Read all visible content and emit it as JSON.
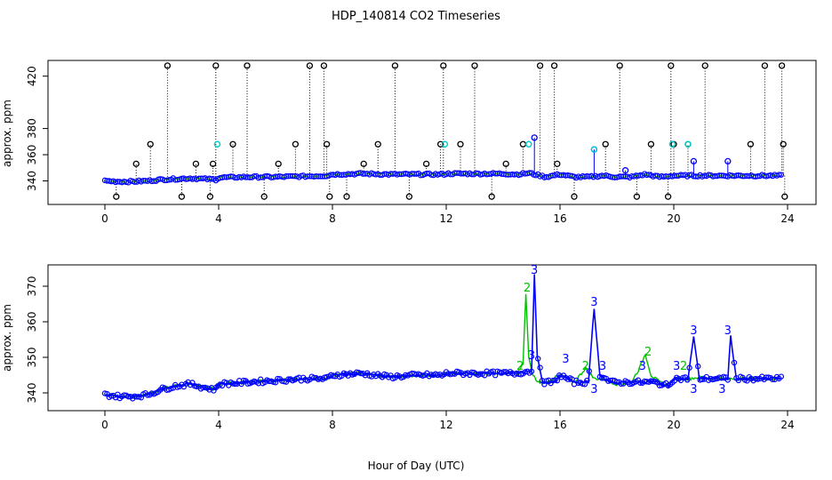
{
  "chart_data": [
    {
      "type": "scatter",
      "title": "HDP_140814  CO2 Timeseries",
      "ylabel": "approx. ppm",
      "xlim": [
        -2,
        25
      ],
      "ylim": [
        322,
        432
      ],
      "x_ticks": [
        0,
        4,
        8,
        12,
        16,
        20,
        24
      ],
      "y_ticks": [
        340,
        360,
        380,
        420
      ],
      "colors": {
        "raw": "#000000",
        "flagged": "#00cdcd",
        "filtered": "#0000ff",
        "smoothed": "#00c000"
      },
      "raw_spikes_x": [
        0.4,
        1.1,
        1.6,
        2.2,
        2.7,
        3.2,
        3.7,
        3.8,
        3.9,
        4.5,
        5.0,
        5.6,
        6.1,
        6.7,
        7.2,
        7.7,
        7.8,
        7.9,
        8.5,
        9.1,
        9.6,
        10.2,
        10.7,
        11.3,
        11.8,
        11.9,
        12.5,
        13.0,
        13.6,
        14.1,
        14.7,
        15.3,
        15.8,
        15.9,
        16.5,
        17.6,
        18.1,
        18.7,
        19.2,
        19.8,
        19.9,
        20.0,
        20.5,
        21.1,
        22.7,
        23.2,
        23.8,
        23.85,
        23.9
      ],
      "raw_spikes_y": [
        328,
        353,
        368,
        428,
        328,
        353,
        328,
        353,
        428,
        368,
        428,
        328,
        353,
        368,
        428,
        428,
        368,
        328,
        328,
        353,
        368,
        428,
        328,
        353,
        368,
        428,
        368,
        428,
        328,
        353,
        368,
        428,
        428,
        353,
        328,
        368,
        428,
        328,
        368,
        328,
        428,
        368,
        368,
        428,
        368,
        428,
        428,
        368,
        328
      ],
      "flagged_x": [
        3.95,
        11.95,
        14.9,
        17.2,
        19.95,
        20.5
      ],
      "flagged_y": [
        368,
        368,
        368,
        364,
        368,
        368
      ],
      "outlier_x": [
        15.1,
        17.2,
        18.3,
        20.7,
        21.9
      ],
      "outlier_y": [
        373,
        364,
        348,
        355,
        355
      ],
      "baseline_x": [
        0,
        0.5,
        1,
        1.5,
        2,
        2.5,
        3,
        3.5,
        3.9,
        4,
        5,
        6,
        7,
        7.8,
        8,
        9,
        10,
        11,
        11.9,
        12,
        13,
        14,
        14.5,
        14.9,
        15.5,
        16,
        16.5,
        17,
        17.5,
        18,
        18.5,
        19,
        19.5,
        20,
        20.5,
        21,
        21.5,
        22,
        22.5,
        23,
        23.5,
        23.8
      ],
      "baseline_y": [
        340,
        339.5,
        339.5,
        340,
        341,
        341.5,
        342,
        341.5,
        341,
        342.5,
        343,
        343,
        343.5,
        344,
        345,
        345.5,
        345,
        345,
        345,
        345.5,
        345.5,
        345.5,
        345,
        346,
        343,
        345,
        343,
        343,
        344,
        343,
        343,
        345,
        343,
        344,
        344,
        344,
        344,
        344,
        344,
        344,
        344,
        344
      ]
    },
    {
      "type": "line",
      "xlabel": "Hour of Day (UTC)",
      "ylabel": "approx. ppm",
      "xlim": [
        -2,
        25
      ],
      "ylim": [
        335,
        376
      ],
      "x_ticks": [
        0,
        4,
        8,
        12,
        16,
        20,
        24
      ],
      "y_ticks": [
        340,
        350,
        360,
        370
      ],
      "series": [
        {
          "name": "2",
          "color": "#00c000",
          "x": [
            0,
            0.5,
            1,
            1.5,
            2,
            2.5,
            3,
            3.5,
            3.9,
            4,
            5,
            6,
            7,
            7.8,
            8,
            9,
            10,
            11,
            11.9,
            12,
            13,
            14,
            14.5,
            14.7,
            14.8,
            14.9,
            15.0,
            15.2,
            15.5,
            16,
            16.5,
            16.9,
            17.2,
            17.5,
            18,
            18.5,
            18.8,
            19.0,
            19.2,
            19.5,
            19.8,
            20,
            20.5,
            21,
            21.5,
            22,
            22.5,
            23,
            23.5,
            23.8
          ],
          "y": [
            339.5,
            339,
            339,
            339.5,
            341,
            342,
            342.5,
            341.5,
            341,
            342.5,
            343,
            343.5,
            344,
            344,
            345,
            345.5,
            344.5,
            345,
            345,
            345.5,
            345.5,
            345.5,
            345.5,
            348,
            368,
            350,
            346,
            343,
            343,
            345,
            343,
            347,
            344,
            344,
            342.5,
            343,
            347,
            351,
            345,
            343,
            342,
            344,
            344,
            344.5,
            344,
            344,
            344,
            344,
            344,
            344
          ]
        },
        {
          "name": "3",
          "color": "#0000ff",
          "x": [
            0,
            0.5,
            1,
            1.5,
            2,
            2.5,
            3,
            3.5,
            3.9,
            4,
            5,
            6,
            7,
            7.8,
            8,
            9,
            10,
            11,
            11.9,
            12,
            13,
            14,
            14.5,
            14.8,
            15.0,
            15.1,
            15.2,
            15.4,
            15.8,
            16,
            16.5,
            17.0,
            17.2,
            17.4,
            17.8,
            18.3,
            18.8,
            19.3,
            19.8,
            20,
            20.5,
            20.7,
            20.9,
            21.5,
            21.9,
            22.0,
            22.2,
            22.5,
            23,
            23.5,
            23.8
          ],
          "y": [
            339.5,
            339,
            339,
            339.5,
            341,
            342,
            342.5,
            341.5,
            341,
            342.5,
            343,
            343.5,
            344,
            344,
            345,
            345.5,
            344.5,
            345,
            345,
            345.5,
            345.5,
            345.5,
            345.5,
            346,
            346,
            373,
            350,
            343,
            343,
            345,
            343,
            343,
            364,
            345,
            343,
            343,
            343,
            343,
            342,
            344,
            344,
            356,
            344,
            344,
            344,
            356,
            344,
            344,
            344,
            344,
            344
          ]
        }
      ],
      "point_labels_x": [
        15.1,
        14.85,
        17.2,
        17.2,
        20.7,
        20.7,
        21.9,
        21.7,
        16.2,
        14.6,
        15.0,
        16.9,
        17.5,
        18.9,
        19.1,
        20.1,
        20.35
      ],
      "point_labels_y": [
        373,
        368,
        364,
        339.5,
        356,
        339.5,
        356,
        339.5,
        348,
        346,
        349,
        346,
        346,
        346,
        350,
        346,
        346
      ],
      "point_labels_text": [
        "3",
        "2",
        "3",
        "3",
        "3",
        "3",
        "3",
        "3",
        "3",
        "2",
        "3",
        "2",
        "3",
        "3",
        "2",
        "3",
        "2"
      ],
      "point_labels_color": [
        "#0000ff",
        "#00c000",
        "#0000ff",
        "#0000ff",
        "#0000ff",
        "#0000ff",
        "#0000ff",
        "#0000ff",
        "#0000ff",
        "#00c000",
        "#0000ff",
        "#00c000",
        "#0000ff",
        "#0000ff",
        "#00c000",
        "#0000ff",
        "#00c000"
      ]
    }
  ]
}
